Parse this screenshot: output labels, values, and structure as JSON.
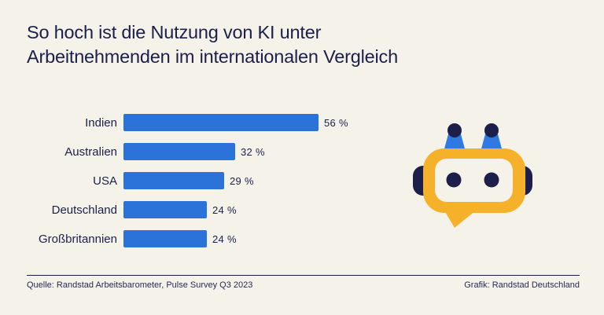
{
  "header": {
    "title_lines": [
      "So hoch ist die Nutzung von KI unter",
      "Arbeitnehmenden im internationalen Vergleich"
    ]
  },
  "chart_data": {
    "type": "bar",
    "orientation": "horizontal",
    "title": "So hoch ist die Nutzung von KI unter Arbeitnehmenden im internationalen Vergleich",
    "categories": [
      "Indien",
      "Australien",
      "USA",
      "Deutschland",
      "Großbritannien"
    ],
    "values": [
      56,
      32,
      29,
      24,
      24
    ],
    "value_labels": [
      "56 %",
      "32 %",
      "29 %",
      "24 %",
      "24 %"
    ],
    "unit": "%",
    "xlim": [
      0,
      60
    ],
    "grid": false,
    "legend": false,
    "bar_color": "#2b73d8"
  },
  "mascot": {
    "icon": "robot-chatbot-icon"
  },
  "footer": {
    "source": "Quelle: Randstad Arbeitsbarometer, Pulse Survey Q3 2023",
    "credit": "Grafik: Randstad Deutschland"
  },
  "colors": {
    "background": "#f5f2ea",
    "navy": "#1b1f4a",
    "bar_blue": "#2b73d8",
    "robot_yellow": "#f6b12b",
    "robot_blue": "#2e79e2"
  }
}
